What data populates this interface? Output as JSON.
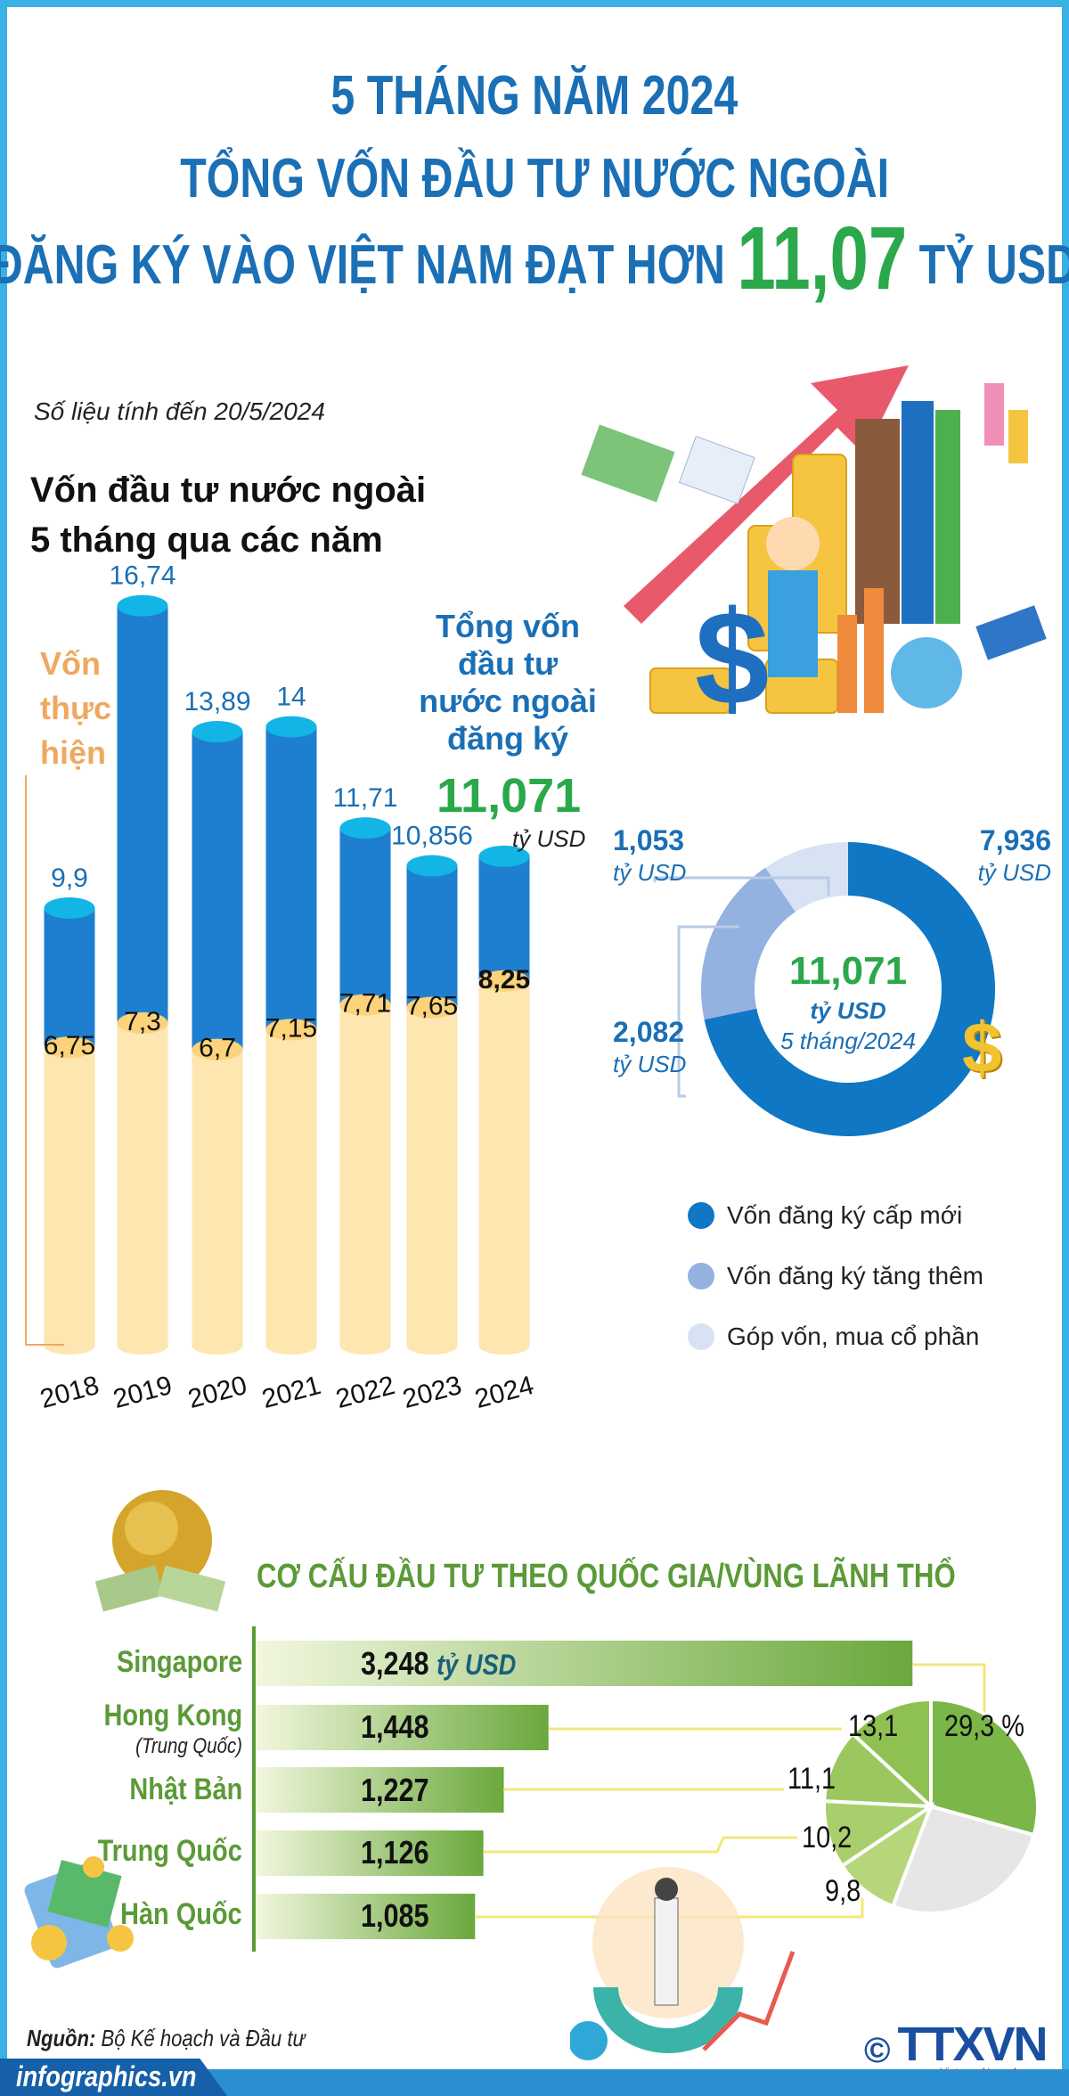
{
  "header": {
    "line1": "5 THÁNG NĂM 2024",
    "line2": "TỔNG VỐN ĐẦU TƯ NƯỚC NGOÀI",
    "line3_prefix": "ĐĂNG KÝ VÀO VIỆT NAM ĐẠT HƠN",
    "line3_value": "11,07",
    "line3_suffix": "TỶ USD"
  },
  "note": "Số liệu tính đến 20/5/2024",
  "section1": {
    "title_line1": "Vốn đầu tư nước ngoài",
    "title_line2": "5 tháng qua các năm",
    "realized_label_l1": "Vốn",
    "realized_label_l2": "thực",
    "realized_label_l3": "hiện",
    "total_label": [
      "Tổng vốn",
      "đầu tư",
      "nước ngoài",
      "đăng ký"
    ],
    "total_value": "11,071",
    "total_unit": "tỷ USD"
  },
  "colors": {
    "frame": "#3ab0e4",
    "title": "#1a6fb5",
    "accent_green": "#2aa84a",
    "bar_blue": "#1e7fd0",
    "bar_cap": "#12b5e5",
    "realized": "#fde6b0",
    "realized_cap": "#fcd27a",
    "realized_label": "#f0a860",
    "donut": [
      "#0f77c4",
      "#93b2e0",
      "#d7e2f3"
    ],
    "country_green": "#5b9a37",
    "pie_rest": "#e6e6e6"
  },
  "chart_data": [
    {
      "type": "bar",
      "categories": [
        "2018",
        "2019",
        "2020",
        "2021",
        "2022",
        "2023",
        "2024"
      ],
      "series": [
        {
          "name": "Tổng vốn đầu tư nước ngoài đăng ký",
          "values": [
            9.9,
            16.74,
            13.89,
            14,
            11.71,
            10.856,
            11.071
          ],
          "labels": [
            "9,9",
            "16,74",
            "13,89",
            "14",
            "11,71",
            "10,856",
            ""
          ]
        },
        {
          "name": "Vốn thực hiện",
          "values": [
            6.75,
            7.3,
            6.7,
            7.15,
            7.71,
            7.65,
            8.25
          ],
          "labels": [
            "6,75",
            "7,3",
            "6,7",
            "7,15",
            "7,71",
            "7,65",
            "8,25"
          ]
        }
      ]
    },
    {
      "type": "pie",
      "center_value": "11,071",
      "center_unit": "tỷ USD",
      "center_period": "5 tháng/2024",
      "slices": [
        {
          "name": "Vốn đăng ký cấp mới",
          "value": 7.936,
          "label": "7,936",
          "unit": "tỷ USD"
        },
        {
          "name": "Vốn đăng ký tăng thêm",
          "value": 2.082,
          "label": "2,082",
          "unit": "tỷ USD"
        },
        {
          "name": "Góp vốn, mua cổ phần",
          "value": 1.053,
          "label": "1,053",
          "unit": "tỷ USD"
        }
      ]
    },
    {
      "type": "bar",
      "orientation": "horizontal",
      "title": "CƠ CẤU ĐẦU TƯ THEO QUỐC GIA/VÙNG LÃNH THỔ",
      "unit": "tỷ USD",
      "categories": [
        "Singapore",
        "Hong Kong",
        "Nhật Bản",
        "Trung Quốc",
        "Hàn Quốc"
      ],
      "subtitle_hk": "(Trung Quốc)",
      "values": [
        3.248,
        1.448,
        1.227,
        1.126,
        1.085
      ],
      "labels": [
        "3,248",
        "1,448",
        "1,227",
        "1,126",
        "1,085"
      ]
    },
    {
      "type": "pie",
      "values_percent": [
        29.3,
        13.1,
        11.1,
        10.2,
        9.8
      ],
      "labels": [
        "29,3 %",
        "13,1",
        "11,1",
        "10,2",
        "9,8"
      ],
      "categories": [
        "Singapore",
        "Hong Kong",
        "Nhật Bản",
        "Trung Quốc",
        "Hàn Quốc"
      ]
    }
  ],
  "footer": {
    "source_label": "Nguồn:",
    "source_text": "Bộ Kế hoạch và Đầu tư",
    "site": "infographics.vn",
    "logo": "TTXVN",
    "logo_sub": "Vietnam News Agency",
    "copyright": "©"
  }
}
